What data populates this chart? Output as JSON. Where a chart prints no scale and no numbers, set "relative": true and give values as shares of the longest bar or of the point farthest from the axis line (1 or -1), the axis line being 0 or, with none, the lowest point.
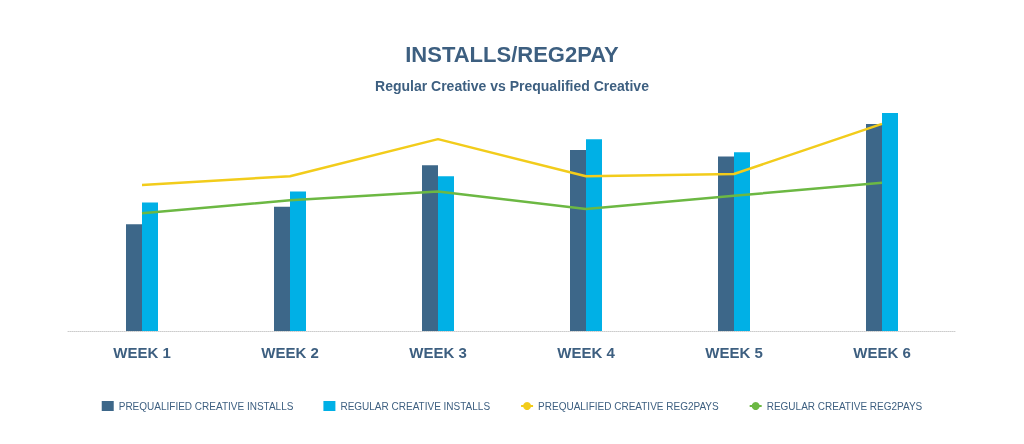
{
  "chart_data": {
    "type": "bar",
    "title": "INSTALLS/REG2PAY",
    "subtitle": "Regular Creative vs Prequalified Creative",
    "relative": true,
    "categories": [
      "WEEK 1",
      "WEEK 2",
      "WEEK 3",
      "WEEK 4",
      "WEEK 5",
      "WEEK 6"
    ],
    "series": [
      {
        "name": "PREQUALIFIED CREATIVE INSTALLS",
        "color": "#3d6789",
        "values": [
          0.49,
          0.57,
          0.76,
          0.83,
          0.8,
          0.95
        ]
      },
      {
        "name": "REGULAR CREATIVE INSTALLS",
        "color": "#00b0e6",
        "values": [
          0.59,
          0.64,
          0.71,
          0.88,
          0.82,
          1
        ]
      },
      {
        "name": "PREQUALIFIED CREATIVE REG2PAYS",
        "type": "line",
        "color": "#f2cc1b",
        "values": [
          0.67,
          0.71,
          0.88,
          0.71,
          0.72,
          0.95
        ]
      },
      {
        "name": "REGULAR CREATIVE REG2PAYS",
        "type": "line",
        "color": "#6cb843",
        "values": [
          0.54,
          0.6,
          0.64,
          0.56,
          0.62,
          0.68
        ]
      }
    ],
    "legend": "bottom",
    "marker": "none"
  }
}
